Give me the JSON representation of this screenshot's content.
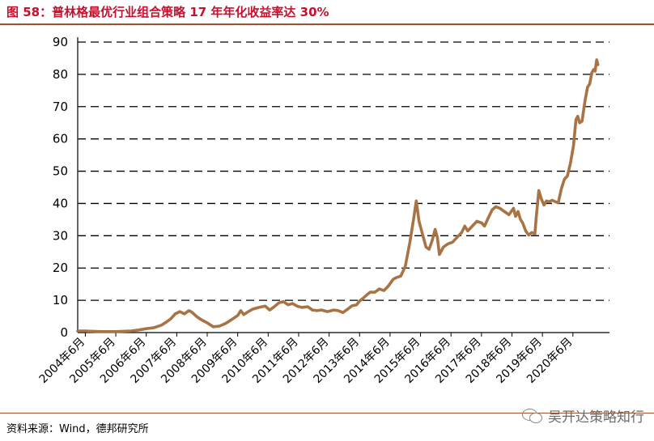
{
  "figure": {
    "title": "图 58：普林格最优行业组合策略 17 年年化收益率达 30%",
    "source": "资料来源：Wind，德邦研究所",
    "watermark": "吴开达策略知行"
  },
  "colors": {
    "line": "#a87445",
    "title": "#c8102e",
    "rule": "#a0522d",
    "grid": "#000000"
  },
  "chart_data": {
    "type": "line",
    "title": "",
    "xlabel": "",
    "ylabel": "",
    "ylim": [
      0,
      90
    ],
    "yticks": [
      0,
      10,
      20,
      30,
      40,
      50,
      60,
      70,
      80,
      90
    ],
    "grid": "horizontal-dashed",
    "xlim": [
      2004.25,
      2021.7
    ],
    "xticks": [
      {
        "x": 2004.5,
        "label": "2004年6月"
      },
      {
        "x": 2005.5,
        "label": "2005年6月"
      },
      {
        "x": 2006.5,
        "label": "2006年6月"
      },
      {
        "x": 2007.5,
        "label": "2007年6月"
      },
      {
        "x": 2008.5,
        "label": "2008年6月"
      },
      {
        "x": 2009.5,
        "label": "2009年6月"
      },
      {
        "x": 2010.5,
        "label": "2010年6月"
      },
      {
        "x": 2011.5,
        "label": "2011年6月"
      },
      {
        "x": 2012.5,
        "label": "2012年6月"
      },
      {
        "x": 2013.5,
        "label": "2013年6月"
      },
      {
        "x": 2014.5,
        "label": "2014年6月"
      },
      {
        "x": 2015.5,
        "label": "2015年6月"
      },
      {
        "x": 2016.5,
        "label": "2016年6月"
      },
      {
        "x": 2017.5,
        "label": "2017年6月"
      },
      {
        "x": 2018.5,
        "label": "2018年6月"
      },
      {
        "x": 2019.5,
        "label": "2019年6月"
      },
      {
        "x": 2020.5,
        "label": "2020年6月"
      }
    ],
    "series": [
      {
        "name": "",
        "points": [
          [
            2004.25,
            0.5
          ],
          [
            2004.5,
            0.5
          ],
          [
            2004.75,
            0.4
          ],
          [
            2005.0,
            0.3
          ],
          [
            2005.25,
            0.3
          ],
          [
            2005.5,
            0.3
          ],
          [
            2005.75,
            0.4
          ],
          [
            2006.0,
            0.5
          ],
          [
            2006.25,
            0.8
          ],
          [
            2006.5,
            1.2
          ],
          [
            2006.75,
            1.5
          ],
          [
            2007.0,
            2.3
          ],
          [
            2007.15,
            3.2
          ],
          [
            2007.3,
            4.2
          ],
          [
            2007.45,
            5.8
          ],
          [
            2007.6,
            6.5
          ],
          [
            2007.75,
            5.8
          ],
          [
            2007.9,
            6.8
          ],
          [
            2008.0,
            6.3
          ],
          [
            2008.15,
            5.0
          ],
          [
            2008.3,
            4.0
          ],
          [
            2008.5,
            3.0
          ],
          [
            2008.7,
            1.8
          ],
          [
            2008.9,
            2.0
          ],
          [
            2009.1,
            2.8
          ],
          [
            2009.3,
            4.0
          ],
          [
            2009.5,
            5.3
          ],
          [
            2009.6,
            6.8
          ],
          [
            2009.7,
            5.6
          ],
          [
            2009.85,
            6.5
          ],
          [
            2010.0,
            7.3
          ],
          [
            2010.2,
            7.8
          ],
          [
            2010.4,
            8.2
          ],
          [
            2010.55,
            7.0
          ],
          [
            2010.7,
            8.0
          ],
          [
            2010.85,
            9.2
          ],
          [
            2011.0,
            9.6
          ],
          [
            2011.15,
            8.6
          ],
          [
            2011.3,
            9.0
          ],
          [
            2011.45,
            8.2
          ],
          [
            2011.6,
            7.8
          ],
          [
            2011.8,
            8.0
          ],
          [
            2011.95,
            7.0
          ],
          [
            2012.1,
            6.8
          ],
          [
            2012.25,
            7.0
          ],
          [
            2012.45,
            6.5
          ],
          [
            2012.65,
            7.0
          ],
          [
            2012.8,
            6.8
          ],
          [
            2012.95,
            6.2
          ],
          [
            2013.1,
            7.2
          ],
          [
            2013.25,
            8.3
          ],
          [
            2013.4,
            8.6
          ],
          [
            2013.5,
            9.8
          ],
          [
            2013.6,
            10.5
          ],
          [
            2013.75,
            11.8
          ],
          [
            2013.85,
            12.5
          ],
          [
            2014.0,
            12.5
          ],
          [
            2014.15,
            13.5
          ],
          [
            2014.3,
            13.0
          ],
          [
            2014.45,
            14.5
          ],
          [
            2014.6,
            16.5
          ],
          [
            2014.7,
            17.0
          ],
          [
            2014.85,
            17.5
          ],
          [
            2015.0,
            20.5
          ],
          [
            2015.15,
            28.0
          ],
          [
            2015.27,
            35.0
          ],
          [
            2015.36,
            40.8
          ],
          [
            2015.45,
            34.5
          ],
          [
            2015.55,
            31.0
          ],
          [
            2015.68,
            26.5
          ],
          [
            2015.78,
            25.8
          ],
          [
            2015.88,
            28.5
          ],
          [
            2015.98,
            32.0
          ],
          [
            2016.05,
            29.5
          ],
          [
            2016.12,
            24.2
          ],
          [
            2016.25,
            26.5
          ],
          [
            2016.4,
            27.5
          ],
          [
            2016.55,
            28.0
          ],
          [
            2016.7,
            29.5
          ],
          [
            2016.85,
            31.0
          ],
          [
            2016.95,
            33.0
          ],
          [
            2017.05,
            31.5
          ],
          [
            2017.2,
            33.0
          ],
          [
            2017.35,
            34.5
          ],
          [
            2017.5,
            34.0
          ],
          [
            2017.6,
            33.0
          ],
          [
            2017.72,
            35.5
          ],
          [
            2017.85,
            38.0
          ],
          [
            2017.97,
            39.0
          ],
          [
            2018.1,
            38.5
          ],
          [
            2018.25,
            37.5
          ],
          [
            2018.4,
            36.5
          ],
          [
            2018.55,
            38.5
          ],
          [
            2018.62,
            36.0
          ],
          [
            2018.7,
            37.5
          ],
          [
            2018.78,
            35.0
          ],
          [
            2018.85,
            34.0
          ],
          [
            2018.95,
            31.5
          ],
          [
            2019.05,
            30.2
          ],
          [
            2019.15,
            31.0
          ],
          [
            2019.25,
            30.5
          ],
          [
            2019.3,
            36.0
          ],
          [
            2019.38,
            44.0
          ],
          [
            2019.46,
            41.5
          ],
          [
            2019.55,
            39.5
          ],
          [
            2019.63,
            40.8
          ],
          [
            2019.72,
            40.5
          ],
          [
            2019.82,
            41.0
          ],
          [
            2019.93,
            40.5
          ],
          [
            2020.02,
            40.2
          ],
          [
            2020.12,
            44.5
          ],
          [
            2020.22,
            47.5
          ],
          [
            2020.32,
            48.5
          ],
          [
            2020.42,
            52.5
          ],
          [
            2020.52,
            58.0
          ],
          [
            2020.6,
            66.0
          ],
          [
            2020.66,
            67.0
          ],
          [
            2020.72,
            65.0
          ],
          [
            2020.8,
            65.5
          ],
          [
            2020.9,
            72.0
          ],
          [
            2020.98,
            76.0
          ],
          [
            2021.05,
            77.0
          ],
          [
            2021.12,
            80.5
          ],
          [
            2021.18,
            81.5
          ],
          [
            2021.23,
            81.0
          ],
          [
            2021.28,
            84.5
          ],
          [
            2021.32,
            83.0
          ]
        ]
      }
    ]
  }
}
